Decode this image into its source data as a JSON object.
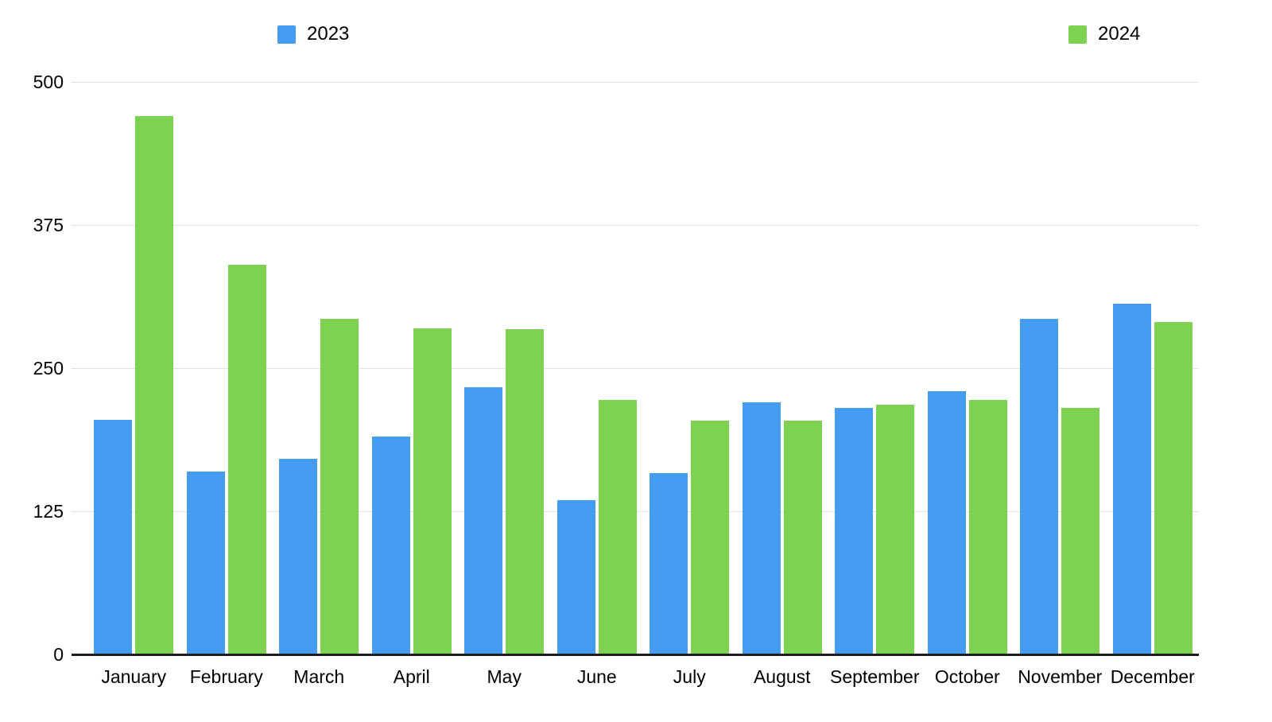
{
  "chart_data": {
    "type": "bar",
    "title": "",
    "categories": [
      "January",
      "February",
      "March",
      "April",
      "May",
      "June",
      "July",
      "August",
      "September",
      "October",
      "November",
      "December"
    ],
    "series": [
      {
        "name": "2023",
        "color": "#459cf1",
        "values": [
          205,
          160,
          171,
          190,
          233,
          135,
          158,
          220,
          215,
          230,
          293,
          306
        ]
      },
      {
        "name": "2024",
        "color": "#7ed251",
        "values": [
          470,
          340,
          293,
          285,
          284,
          222,
          204,
          204,
          218,
          222,
          215,
          290
        ]
      }
    ],
    "xlabel": "",
    "ylabel": "",
    "ylim": [
      0,
      500
    ],
    "yticks": [
      500,
      375,
      250,
      125,
      0
    ],
    "grid": true,
    "legend_position": "top"
  },
  "colors": {
    "background": "#ffffff",
    "gridline": "#e2e2e2",
    "axis_line": "#1d1d1d",
    "text": "#000000",
    "series_2023": "#459cf1",
    "series_2024": "#7ed251"
  }
}
